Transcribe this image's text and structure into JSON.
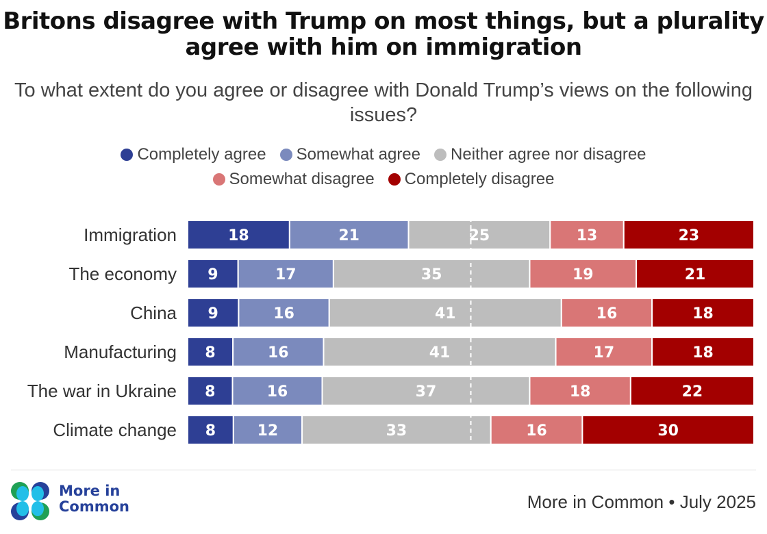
{
  "title": "Britons disagree with Trump on most things, but a plurality agree with him on immigration",
  "subtitle": "To what extent do you agree or disagree with Donald Trump’s views on the following issues?",
  "chart_data": {
    "type": "bar",
    "orientation": "horizontal-stacked-100",
    "categories": [
      "Immigration",
      "The economy",
      "China",
      "Manufacturing",
      "The war in Ukraine",
      "Climate change"
    ],
    "series": [
      {
        "name": "Completely agree",
        "color": "#2e3f94",
        "values": [
          18,
          9,
          9,
          8,
          8,
          8
        ]
      },
      {
        "name": "Somewhat agree",
        "color": "#7b8abd",
        "values": [
          21,
          17,
          16,
          16,
          16,
          12
        ]
      },
      {
        "name": "Neither agree nor disagree",
        "color": "#bdbdbd",
        "values": [
          25,
          35,
          41,
          41,
          37,
          33
        ]
      },
      {
        "name": "Somewhat disagree",
        "color": "#d97676",
        "values": [
          13,
          19,
          16,
          17,
          18,
          16
        ]
      },
      {
        "name": "Completely disagree",
        "color": "#a30000",
        "values": [
          23,
          21,
          18,
          18,
          22,
          30
        ]
      }
    ],
    "midline": 50,
    "legend_position": "top"
  },
  "logo": {
    "line1": "More in",
    "line2": "Common"
  },
  "source": "More in Common • July 2025"
}
